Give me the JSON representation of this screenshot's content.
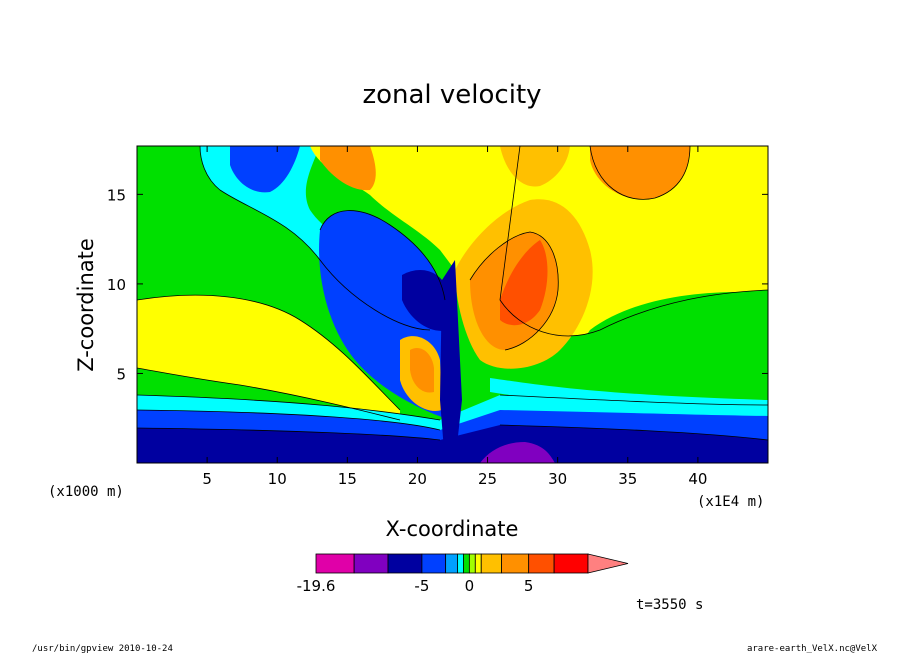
{
  "chart_data": {
    "type": "heatmap",
    "title": "zonal velocity",
    "xlabel": "X-coordinate",
    "ylabel": "Z-coordinate",
    "x_unit": "(x1E4 m)",
    "z_unit": "(x1000 m)",
    "xlim": [
      0,
      45
    ],
    "ylim": [
      0,
      17.7
    ],
    "x_ticks": [
      5,
      10,
      15,
      20,
      25,
      30,
      35,
      40
    ],
    "x_tick_labels": [
      "5",
      "10",
      "15",
      "20",
      "25",
      "30",
      "35",
      "40"
    ],
    "y_ticks": [
      5,
      10,
      15
    ],
    "y_tick_labels": [
      "5",
      "10",
      "15"
    ],
    "colorbar": {
      "levels": [
        -19.6,
        -15,
        -10,
        -5,
        -3,
        -2,
        -1,
        0,
        1,
        2,
        3,
        5,
        10,
        15
      ],
      "tick_labels": [
        "-19.6",
        "-5",
        "0",
        "5"
      ],
      "tick_values": [
        -19.6,
        -5,
        0,
        5
      ],
      "colors": [
        "#e000a8",
        "#8000c0",
        "#0000a0",
        "#0040ff",
        "#00a0ff",
        "#00ffff",
        "#00e000",
        "#a0ff00",
        "#ffff00",
        "#ffc000",
        "#ff9000",
        "#ff5000",
        "#ff0000"
      ],
      "extend_color": "#ff8080"
    },
    "time_label": "t=3550 s"
  },
  "footer": {
    "left": "/usr/bin/gpview   2010-10-24",
    "right": "arare-earth_VelX.nc@VelX"
  }
}
